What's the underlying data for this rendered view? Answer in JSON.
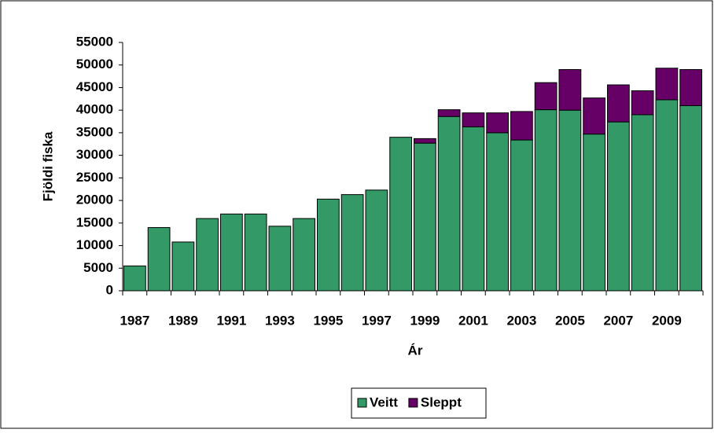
{
  "chart_data": {
    "type": "stacked-bar",
    "x_label": "Ár",
    "y_label": "Fjöldi fiska",
    "categories": [
      "1987",
      null,
      "1989",
      null,
      "1991",
      null,
      "1993",
      null,
      "1995",
      null,
      "1997",
      null,
      "1999",
      null,
      "2001",
      null,
      "2003",
      null,
      "2005",
      null,
      "2007",
      null,
      "2009",
      null
    ],
    "series": [
      {
        "name": "Veitt",
        "color": "#339966",
        "values": [
          5500,
          14000,
          10800,
          16000,
          17000,
          17000,
          14300,
          16000,
          20300,
          21300,
          22300,
          34000,
          32700,
          38600,
          36300,
          35000,
          33400,
          40100,
          40000,
          34700,
          37400,
          39000,
          42300,
          41000
        ]
      },
      {
        "name": "Sleppt",
        "color": "#660066",
        "values": [
          0,
          0,
          0,
          0,
          0,
          0,
          0,
          0,
          0,
          0,
          0,
          0,
          1000,
          1500,
          3100,
          4400,
          6300,
          6000,
          9000,
          8000,
          8200,
          5300,
          7000,
          8000
        ]
      }
    ],
    "ylim": [
      0,
      55000
    ],
    "yticks": [
      0,
      5000,
      10000,
      15000,
      20000,
      25000,
      30000,
      35000,
      40000,
      45000,
      50000,
      55000
    ],
    "legend": "bottom"
  }
}
